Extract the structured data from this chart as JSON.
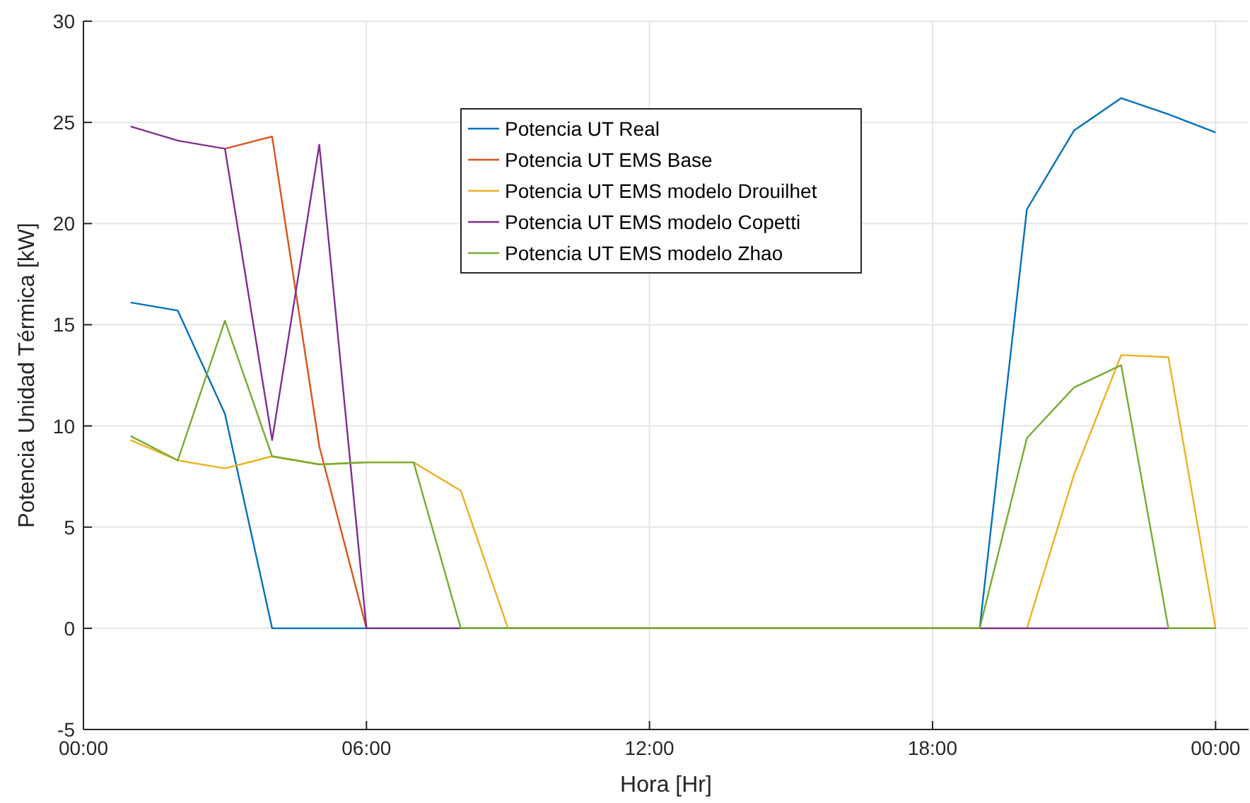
{
  "chart_data": {
    "type": "line",
    "xlabel": "Hora [Hr]",
    "ylabel": "Potencia Unidad Térmica [kW]",
    "x": [
      1,
      2,
      3,
      4,
      5,
      6,
      7,
      8,
      9,
      10,
      11,
      12,
      13,
      14,
      15,
      16,
      17,
      18,
      19,
      20,
      21,
      22,
      23,
      24
    ],
    "xlim": [
      0,
      24.7
    ],
    "xticks": [
      {
        "value": 0,
        "label": "00:00"
      },
      {
        "value": 6,
        "label": "06:00"
      },
      {
        "value": 12,
        "label": "12:00"
      },
      {
        "value": 18,
        "label": "18:00"
      },
      {
        "value": 24,
        "label": "00:00"
      }
    ],
    "ylim": [
      -5,
      30
    ],
    "yticks": [
      -5,
      0,
      5,
      10,
      15,
      20,
      25,
      30
    ],
    "grid": true,
    "legend": "top",
    "line_style": "solid",
    "series": [
      {
        "name": "Potencia UT Real",
        "color": "#0072bd",
        "values": [
          16.1,
          15.7,
          10.6,
          0,
          0,
          0,
          0,
          0,
          0,
          0,
          0,
          0,
          0,
          0,
          0,
          0,
          0,
          0,
          0,
          20.7,
          24.6,
          26.2,
          25.4,
          24.5
        ]
      },
      {
        "name": "Potencia UT EMS Base",
        "color": "#d95319",
        "values": [
          null,
          null,
          23.7,
          24.3,
          9.0,
          0,
          null,
          null,
          null,
          null,
          null,
          null,
          null,
          null,
          null,
          null,
          null,
          null,
          null,
          null,
          null,
          null,
          null,
          null
        ]
      },
      {
        "name": "Potencia UT EMS modelo Drouilhet",
        "color": "#edb120",
        "values": [
          9.3,
          8.3,
          7.9,
          8.5,
          8.1,
          8.2,
          8.2,
          6.8,
          0,
          0,
          0,
          0,
          0,
          0,
          0,
          0,
          0,
          0,
          0,
          0,
          7.6,
          13.5,
          13.4,
          0
        ]
      },
      {
        "name": "Potencia UT EMS modelo Copetti",
        "color": "#7e2f8e",
        "values": [
          24.8,
          24.1,
          23.7,
          9.3,
          23.9,
          0,
          0,
          0,
          0,
          0,
          0,
          0,
          0,
          0,
          0,
          0,
          0,
          0,
          0,
          0,
          0,
          0,
          0,
          0
        ]
      },
      {
        "name": "Potencia UT EMS modelo Zhao",
        "color": "#77ac30",
        "values": [
          9.5,
          8.3,
          15.2,
          8.5,
          8.1,
          8.2,
          8.2,
          0,
          0,
          0,
          0,
          0,
          0,
          0,
          0,
          0,
          0,
          0,
          0,
          9.4,
          11.9,
          13.0,
          0,
          0
        ]
      }
    ]
  }
}
